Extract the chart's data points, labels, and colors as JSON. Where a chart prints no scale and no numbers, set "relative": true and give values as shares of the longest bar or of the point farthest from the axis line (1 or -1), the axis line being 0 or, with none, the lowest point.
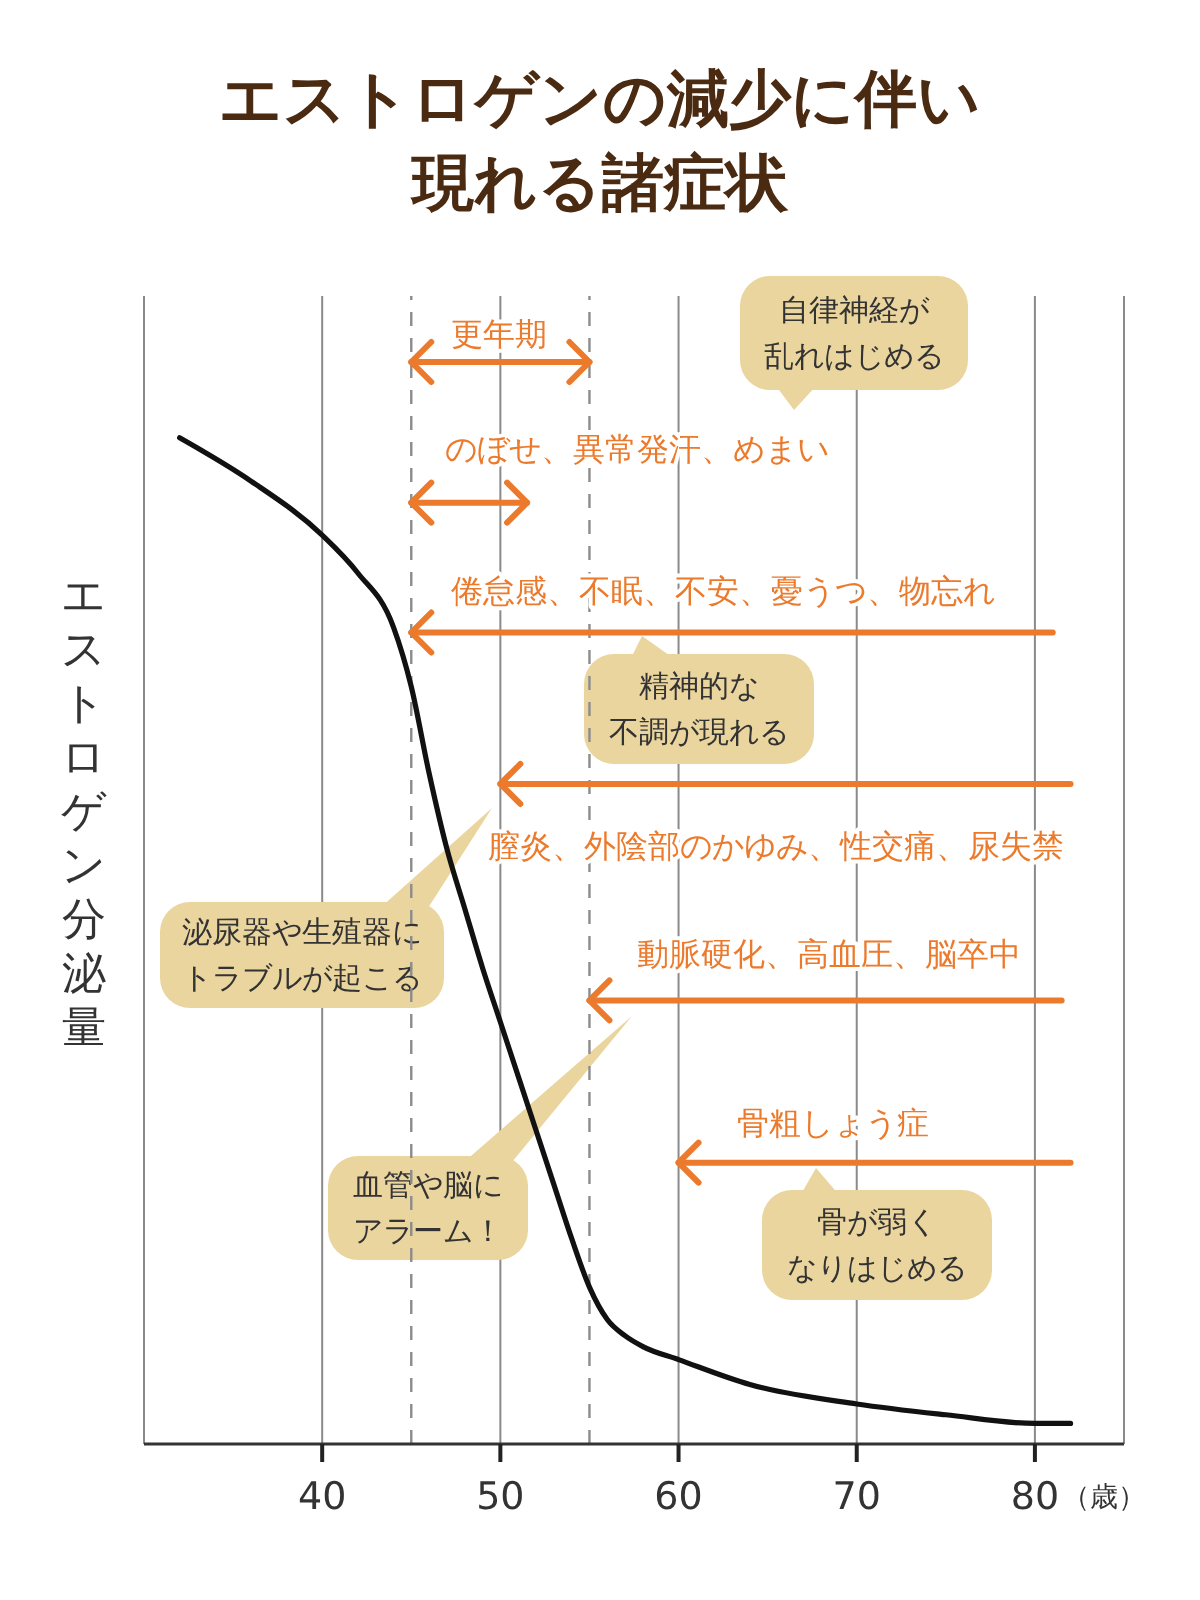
{
  "chart_data": {
    "type": "line",
    "title": "エストロゲンの減少に伴い現れる諸症状",
    "xlabel": "（歳）",
    "ylabel": "エストロゲン分泌量",
    "relative": true,
    "series": [
      {
        "x": [
          32,
          36,
          40,
          42,
          44,
          45,
          46,
          47,
          48,
          49,
          50,
          51,
          52,
          53,
          54,
          55,
          56,
          57,
          58,
          60,
          64,
          70,
          75,
          80,
          82
        ],
        "values": [
          0.93,
          0.89,
          0.84,
          0.805,
          0.755,
          0.7,
          0.62,
          0.55,
          0.495,
          0.44,
          0.39,
          0.34,
          0.29,
          0.24,
          0.19,
          0.145,
          0.115,
          0.1,
          0.09,
          0.078,
          0.055,
          0.037,
          0.027,
          0.019,
          0.019
        ],
        "color": "#111111"
      },
      {
        "name": "更年期",
        "x": [
          45,
          55
        ],
        "values": [
          1,
          1
        ],
        "color": "#ec7a2c"
      },
      {
        "name": "のぼせ、異常発汗、めまい",
        "x": [
          45,
          51.5
        ],
        "values": [
          0.87,
          0.87
        ],
        "color": "#ec7a2c"
      },
      {
        "name": "倦怠感、不眠、不安、憂うつ、物忘れ",
        "x": [
          45,
          81
        ],
        "values": [
          0.75,
          0.75
        ],
        "color": "#ec7a2c"
      },
      {
        "name": "膣炎、外陰部のかゆみ、性交痛、尿失禁",
        "x": [
          50,
          82
        ],
        "values": [
          0.61,
          0.61
        ],
        "color": "#ec7a2c"
      },
      {
        "name": "動脈硬化、高血圧、脳卒中",
        "x": [
          55,
          81.5
        ],
        "values": [
          0.41,
          0.41
        ],
        "color": "#ec7a2c"
      },
      {
        "name": "骨粗しょう症",
        "x": [
          60,
          82
        ],
        "values": [
          0.26,
          0.26
        ],
        "color": "#ec7a2c"
      }
    ],
    "marker": "none",
    "xlim": [
      30,
      85
    ],
    "xticks": [
      40,
      50,
      60,
      70,
      80
    ],
    "grid": "x",
    "ref_lines": [
      {
        "axis": "x",
        "value": 45,
        "line_style": "dashed",
        "color": "#8c8c8c"
      },
      {
        "axis": "x",
        "value": 55,
        "line_style": "dashed",
        "color": "#8c8c8c"
      }
    ],
    "annotations": [
      "自律神経が乱れはじめる",
      "精神的な不調が現れる",
      "泌尿器や生殖器にトラブルが起こる",
      "血管や脳にアラーム！",
      "骨が弱くなりはじめる"
    ]
  }
}
